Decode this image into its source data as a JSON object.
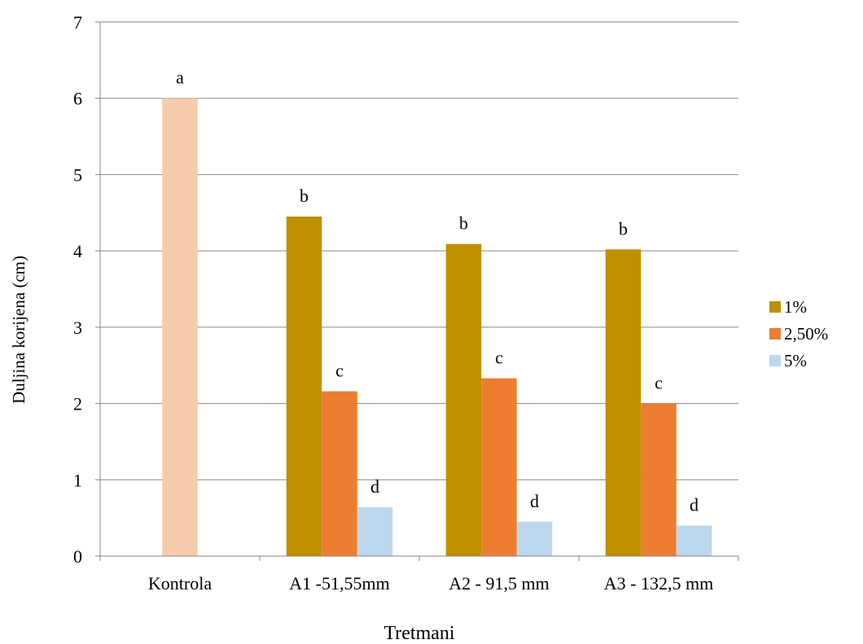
{
  "chart_data": {
    "type": "bar",
    "xlabel": "Tretmani",
    "ylabel": "Duljina korijena (cm)",
    "ylim": [
      0,
      7
    ],
    "yticks": [
      0,
      1,
      2,
      3,
      4,
      5,
      6,
      7
    ],
    "grid": true,
    "legend_position": "right",
    "categories": [
      "Kontrola",
      "A1 -51,55mm",
      "A2 - 91,5 mm",
      "A3 - 132,5 mm"
    ],
    "control": {
      "category": "Kontrola",
      "value": 6.0,
      "label": "a",
      "color": "#f8cbad"
    },
    "series": [
      {
        "name": "1%",
        "color": "#bf9000",
        "values": [
          null,
          4.45,
          4.09,
          4.02
        ],
        "labels": [
          "",
          "b",
          "b",
          "b"
        ]
      },
      {
        "name": "2,50%",
        "color": "#ed7d31",
        "values": [
          null,
          2.16,
          2.33,
          2.0
        ],
        "labels": [
          "",
          "c",
          "c",
          "c"
        ]
      },
      {
        "name": "5%",
        "color": "#bdd7ee",
        "values": [
          null,
          0.64,
          0.45,
          0.4
        ],
        "labels": [
          "",
          "d",
          "d",
          "d"
        ]
      }
    ]
  }
}
